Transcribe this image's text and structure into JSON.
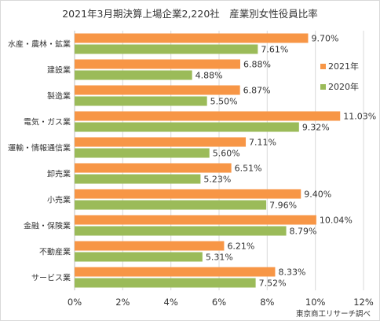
{
  "title": "2021年3月期決算上場企業2,220社　産業別女性役員比率",
  "credit": "東京商工リサーチ調べ",
  "colors": {
    "s2021": "#f79646",
    "s2020": "#9bbb59",
    "grid": "#d9d9d9",
    "axis": "#bfbfbf",
    "text": "#333333"
  },
  "chart_data": {
    "type": "bar",
    "orientation": "horizontal",
    "categories": [
      "水産・農林・鉱業",
      "建設業",
      "製造業",
      "電気・ガス業",
      "運輸・情報通信業",
      "卸売業",
      "小売業",
      "金融・保険業",
      "不動産業",
      "サービス業"
    ],
    "series": [
      {
        "name": "2021年",
        "values": [
          9.7,
          6.88,
          6.87,
          11.03,
          7.11,
          6.51,
          9.4,
          10.04,
          6.21,
          8.33
        ],
        "labels": [
          "9.70%",
          "6.88%",
          "6.87%",
          "11.03%",
          "7.11%",
          "6.51%",
          "9.40%",
          "10.04%",
          "6.21%",
          "8.33%"
        ]
      },
      {
        "name": "2020年",
        "values": [
          7.61,
          4.88,
          5.5,
          9.32,
          5.6,
          5.23,
          7.96,
          8.79,
          5.31,
          7.52
        ],
        "labels": [
          "7.61%",
          "4.88%",
          "5.50%",
          "9.32%",
          "5.60%",
          "5.23%",
          "7.96%",
          "8.79%",
          "5.31%",
          "7.52%"
        ]
      }
    ],
    "xlim": [
      0,
      12
    ],
    "xticks": [
      0,
      2,
      4,
      6,
      8,
      10,
      12
    ],
    "xtick_labels": [
      "0%",
      "2%",
      "4%",
      "6%",
      "8%",
      "10%",
      "12%"
    ],
    "grid": "vertical",
    "legend_position": "right"
  }
}
